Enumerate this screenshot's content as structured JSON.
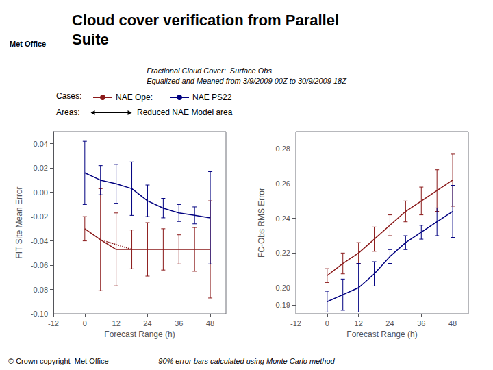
{
  "chart_data": [
    {
      "type": "line",
      "title": [
        "Cloud cover verification from Parallel",
        "Suite"
      ],
      "subtitle": [
        "Fractional Cloud Cover:  Surface Obs",
        "Equalized and Meaned from 3/9/2009 00Z to 30/9/2009 18Z"
      ],
      "annotations": [
        "Met Office",
        "Cases:",
        "Areas:",
        "Reduced NAE Model area",
        "© Crown copyright  Met Office",
        "90% error bars calculated using Monte Carlo method"
      ],
      "xlabel": "Forecast Range (h)",
      "ylabel": "FIT Site Mean Error",
      "xlim": [
        -12,
        54
      ],
      "ylim": [
        -0.1,
        0.05
      ],
      "xticks": [
        -12,
        0,
        12,
        24,
        36,
        48
      ],
      "yticks": [
        {
          "value": -0.1,
          "label": "-0.10"
        },
        -0.08,
        -0.06,
        -0.04,
        -0.02,
        {
          "value": 0.0,
          "label": "0.00"
        },
        0.02,
        0.04
      ],
      "grid": false,
      "series": [
        {
          "name": "NAE Ope:",
          "color": "#8B1A1A",
          "x": [
            0,
            6,
            12,
            18,
            24,
            30,
            36,
            42,
            48
          ],
          "values": [
            -0.03,
            -0.039,
            -0.047,
            -0.047,
            -0.047,
            -0.047,
            -0.047,
            -0.047,
            -0.047
          ],
          "errors": [
            0.01,
            0.042,
            0.03,
            0.016,
            0.022,
            0.017,
            0.012,
            0.018,
            0.04
          ]
        },
        {
          "name": "NAE PS22",
          "color": "#000080",
          "x": [
            0,
            6,
            12,
            18,
            24,
            30,
            36,
            42,
            48
          ],
          "values": [
            0.016,
            0.01,
            0.007,
            0.003,
            -0.007,
            -0.013,
            -0.017,
            -0.019,
            -0.021
          ],
          "errors": [
            0.026,
            0.012,
            0.016,
            0.022,
            0.013,
            0.008,
            0.007,
            0.007,
            0.038
          ]
        },
        {
          "color": "#8B1A1A",
          "line_style": "dotted",
          "x": [
            6,
            12,
            18
          ],
          "values": [
            -0.039,
            -0.043,
            -0.047
          ]
        }
      ]
    },
    {
      "type": "line",
      "xlabel": "Forecast Range (h)",
      "ylabel": "FC-Obs RMS Error",
      "xlim": [
        -12,
        54
      ],
      "ylim": [
        0.185,
        0.29
      ],
      "xticks": [
        -12,
        0,
        12,
        24,
        36,
        48
      ],
      "yticks": [
        0.19,
        {
          "value": 0.2,
          "label": "0.20"
        },
        0.22,
        0.24,
        0.26,
        0.28
      ],
      "grid": false,
      "series": [
        {
          "name": "NAE Ope:",
          "color": "#8B1A1A",
          "x": [
            0,
            6,
            12,
            18,
            24,
            30,
            36,
            42,
            48
          ],
          "values": [
            0.207,
            0.214,
            0.22,
            0.228,
            0.236,
            0.244,
            0.25,
            0.256,
            0.262
          ],
          "errors": [
            0.004,
            0.006,
            0.006,
            0.007,
            0.006,
            0.006,
            0.008,
            0.012,
            0.015
          ]
        },
        {
          "name": "NAE PS22",
          "color": "#000080",
          "x": [
            0,
            6,
            12,
            18,
            24,
            30,
            36,
            42,
            48
          ],
          "values": [
            0.192,
            0.196,
            0.2,
            0.208,
            0.218,
            0.226,
            0.232,
            0.238,
            0.244
          ],
          "errors": [
            0.006,
            0.009,
            0.014,
            0.007,
            0.004,
            0.004,
            0.004,
            0.008,
            0.015
          ]
        }
      ]
    }
  ]
}
